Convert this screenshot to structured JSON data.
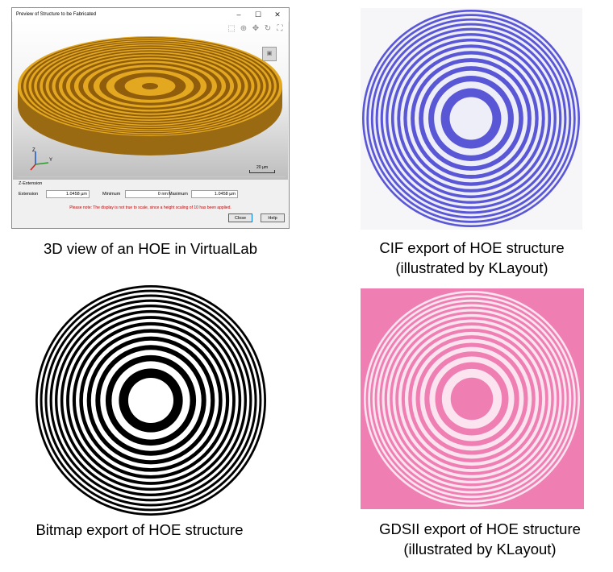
{
  "window": {
    "title": "Preview of Structure to be Fabricated",
    "controls": {
      "minimize": "–",
      "maximize": "☐",
      "close": "✕"
    },
    "toolbar_icons": [
      "zoom-region-icon",
      "zoom-icon",
      "pan-icon",
      "rotate-icon",
      "fit-icon"
    ],
    "axis_labels": {
      "z": "Z",
      "y": "Y"
    },
    "scale_bar_label": "20 µm",
    "z_extension": {
      "heading": "Z-Extension",
      "extension_label": "Extension",
      "extension_value": "1.0458 µm",
      "minimum_label": "Minimum",
      "minimum_value": "0 nm",
      "maximum_label": "Maximum",
      "maximum_value": "1.0458 µm"
    },
    "note": "Please note: The display is not true to scale, since a height scaling of 10 has been applied.",
    "buttons": {
      "close": "Close",
      "help": "Help"
    }
  },
  "captions": {
    "panel1": "3D view of an HOE in VirtualLab",
    "panel2_line1": "CIF export of HOE structure",
    "panel2_line2": "(illustrated by KLayout)",
    "panel3": "Bitmap export of HOE structure",
    "panel4_line1": "GDSII export of HOE structure",
    "panel4_line2": "(illustrated by KLayout)"
  },
  "colors": {
    "disc_gold": "#e3a81f",
    "disc_shade": "#9a6a12",
    "cif_blue": "#5a57d6",
    "gds_pink": "#ef7fb3",
    "bitmap_black": "#000000"
  }
}
